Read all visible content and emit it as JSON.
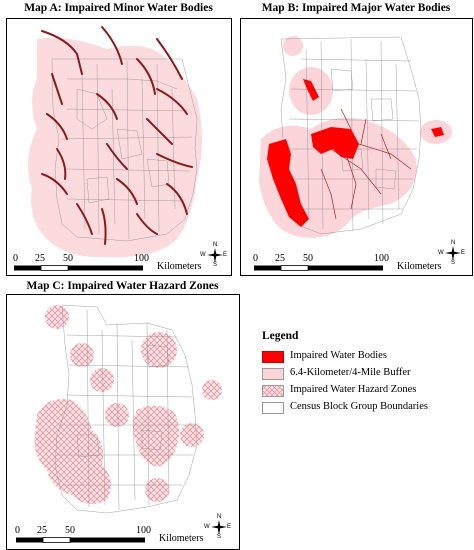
{
  "maps": [
    {
      "id": "a",
      "title": "Map A: Impaired Minor Water Bodies"
    },
    {
      "id": "b",
      "title": "Map B: Impaired Major Water Bodies"
    },
    {
      "id": "c",
      "title": "Map C: Impaired Water Hazard Zones"
    }
  ],
  "scale": {
    "ticks": [
      "0",
      "25",
      "50",
      "100"
    ],
    "unit": "Kilometers"
  },
  "compass": {
    "n": "N",
    "s": "S",
    "e": "E",
    "w": "W"
  },
  "legend": {
    "title": "Legend",
    "items": [
      {
        "label": "Impaired Water Bodies",
        "color": "#ff0000",
        "pattern": "solid"
      },
      {
        "label": "6.4-Kilometer/4-Mile Buffer",
        "color": "#fbd5d9",
        "pattern": "solid"
      },
      {
        "label": "Impaired Water Hazard Zones",
        "color": "#f5b8bf",
        "pattern": "crosshatch"
      },
      {
        "label": "Census Block Group Boundaries",
        "color": "#ffffff",
        "pattern": "outline"
      }
    ]
  },
  "colors": {
    "water": "#ff0000",
    "river": "#7a1010",
    "buffer": "#fbd5d9",
    "hazard": "#f4aab3",
    "boundary": "#8a8a8a"
  }
}
